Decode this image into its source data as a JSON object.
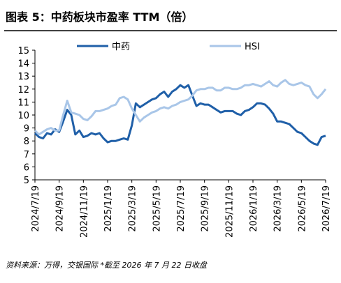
{
  "chart_data": {
    "type": "line",
    "title": "图表 5：中药板块市盈率 TTM（倍）",
    "note": "资料来源：万得，交银国际   *截至 2026 年 7 月 22 日收盘",
    "categories": [
      "2024/7/19",
      null,
      null,
      null,
      null,
      null,
      "2024/9/19",
      null,
      null,
      null,
      null,
      null,
      "2024/11/19",
      null,
      null,
      null,
      null,
      null,
      "2025/1/19",
      null,
      null,
      null,
      null,
      null,
      "2025/3/19",
      null,
      null,
      null,
      null,
      null,
      "2025/5/19",
      null,
      null,
      null,
      null,
      null,
      "2025/7/19",
      null,
      null,
      null,
      null,
      null,
      "2025/9/19",
      null,
      null,
      null,
      null,
      null,
      "2025/11/19",
      null,
      null,
      null,
      null,
      null,
      "2026/1/19",
      null,
      null,
      null,
      null,
      null,
      "2026/3/19",
      null,
      null,
      null,
      null,
      null,
      "2026/5/19",
      null,
      null,
      null,
      null,
      null,
      "2026/7/19"
    ],
    "series": [
      {
        "name": "中药",
        "color": "#1f5fa8",
        "values": [
          8.6,
          8.3,
          8.2,
          8.6,
          8.5,
          8.9,
          8.7,
          9.5,
          10.4,
          10.0,
          8.5,
          8.8,
          8.3,
          8.4,
          8.6,
          8.5,
          8.6,
          8.2,
          7.9,
          8.0,
          8.0,
          8.1,
          8.2,
          8.1,
          9.2,
          10.9,
          10.6,
          10.8,
          11.0,
          11.2,
          11.3,
          11.6,
          11.8,
          11.4,
          11.8,
          12.0,
          12.3,
          12.1,
          12.3,
          11.5,
          10.7,
          10.9,
          10.8,
          10.8,
          10.6,
          10.4,
          10.2,
          10.3,
          10.3,
          10.3,
          10.1,
          10.0,
          10.3,
          10.4,
          10.6,
          10.9,
          10.9,
          10.8,
          10.5,
          10.1,
          9.5,
          9.5,
          9.4,
          9.3,
          9.0,
          8.7,
          8.6,
          8.3,
          8.0,
          7.8,
          7.7,
          8.3,
          8.4
        ]
      },
      {
        "name": "HSI",
        "color": "#a9c6e8",
        "values": [
          8.8,
          8.5,
          8.7,
          8.9,
          9.0,
          8.8,
          8.8,
          10.0,
          11.1,
          10.2,
          10.1,
          10.0,
          9.7,
          9.6,
          9.9,
          10.3,
          10.3,
          10.4,
          10.5,
          10.7,
          10.8,
          11.3,
          11.4,
          11.2,
          10.5,
          10.0,
          9.5,
          9.8,
          10.0,
          10.2,
          10.3,
          10.5,
          10.6,
          10.5,
          10.7,
          10.8,
          11.0,
          11.1,
          11.2,
          11.5,
          11.9,
          12.0,
          12.0,
          12.1,
          12.1,
          11.9,
          11.9,
          12.1,
          12.1,
          12.0,
          12.0,
          12.1,
          12.3,
          12.3,
          12.4,
          12.3,
          12.2,
          12.4,
          12.6,
          12.3,
          12.2,
          12.5,
          12.7,
          12.4,
          12.3,
          12.4,
          12.5,
          12.3,
          12.2,
          11.6,
          11.3,
          11.6,
          12.0
        ]
      }
    ],
    "ylim": [
      5,
      15
    ],
    "yticks": [
      5,
      6,
      7,
      8,
      9,
      10,
      11,
      12,
      13,
      14,
      15
    ]
  }
}
